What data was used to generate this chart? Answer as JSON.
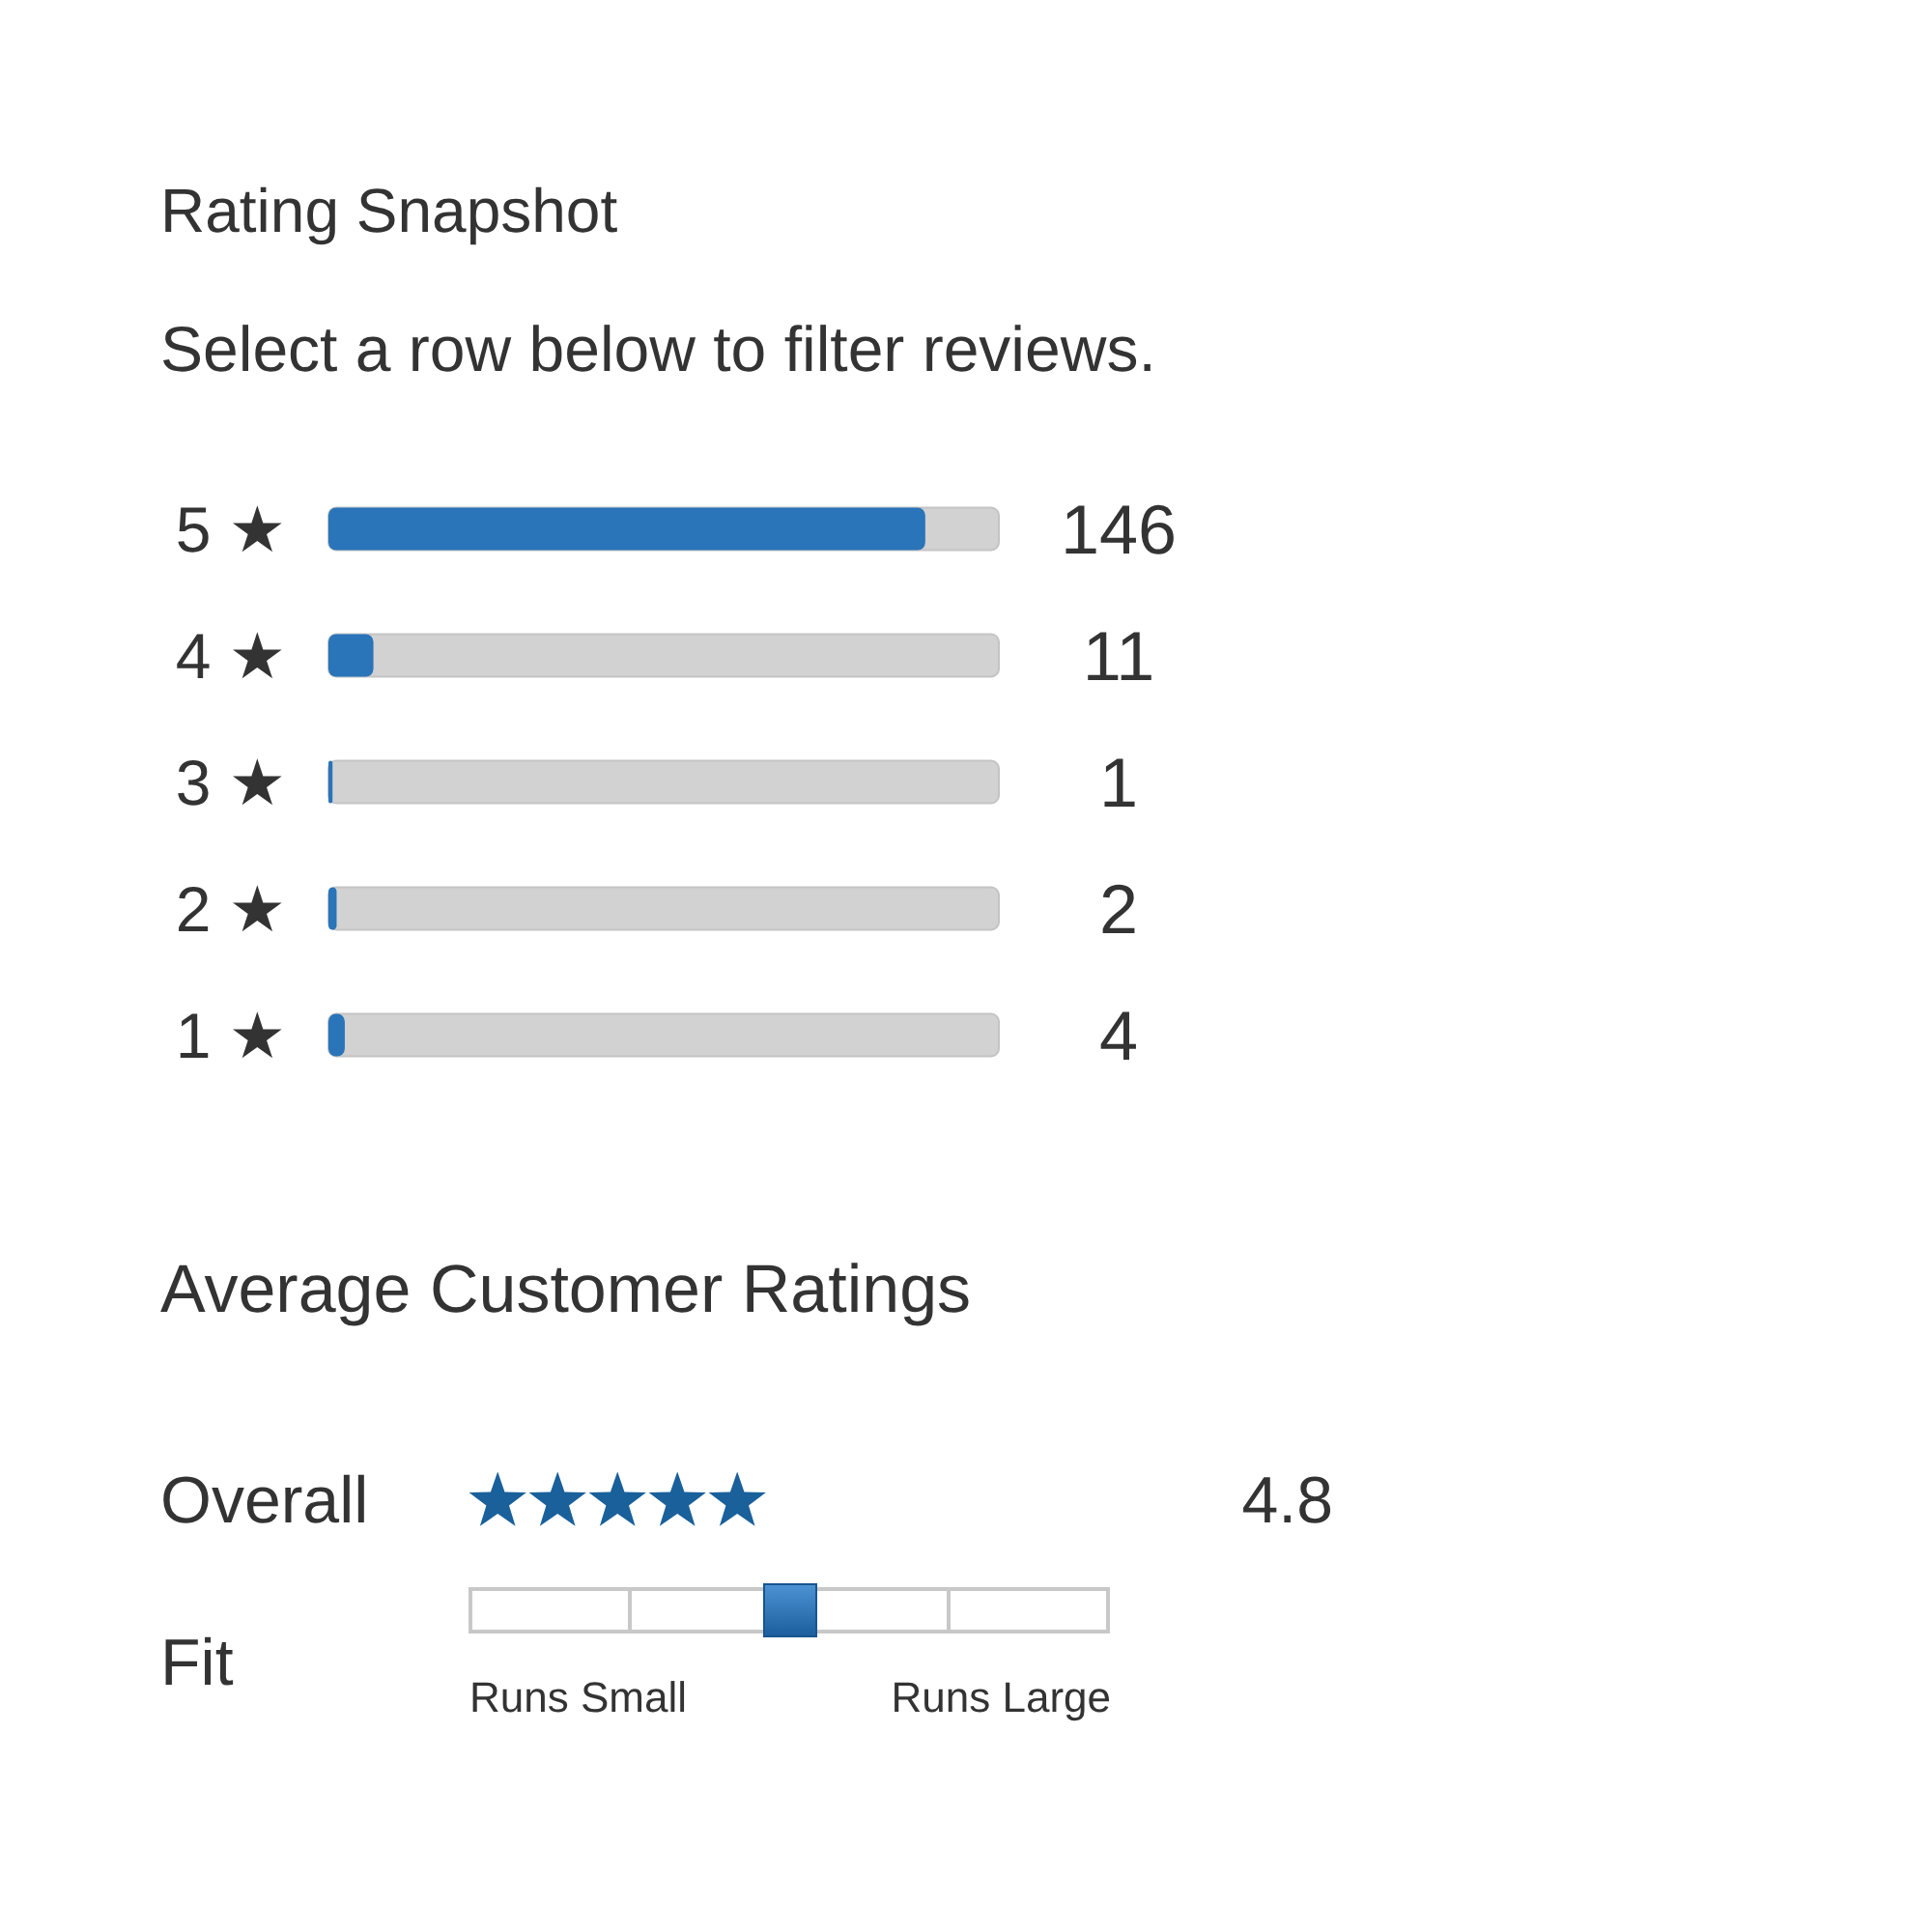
{
  "chart_data": [
    {
      "type": "bar",
      "orientation": "horizontal",
      "title": "Rating Snapshot",
      "subtitle": "Select a row below to filter reviews.",
      "categories": [
        "5 ★",
        "4 ★",
        "3 ★",
        "2 ★",
        "1 ★"
      ],
      "values": [
        146,
        11,
        1,
        2,
        4
      ],
      "color": "#2a74b9",
      "data_labels": true,
      "tick_labels": "y"
    },
    {
      "type": "other",
      "title": "Average Customer Ratings",
      "annotations": [
        "Overall",
        "4.8",
        "Fit",
        "Runs Small",
        "Runs Large"
      ]
    }
  ]
}
